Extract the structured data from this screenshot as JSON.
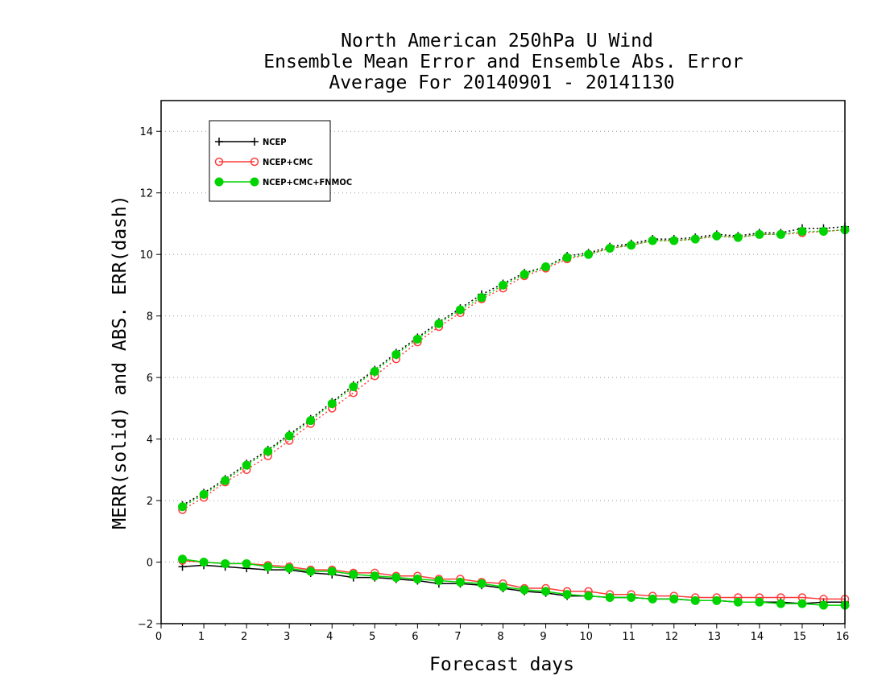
{
  "chart_data": {
    "type": "line",
    "title": [
      "North American 250hPa U Wind",
      "Ensemble Mean Error and Ensemble Abs. Error",
      "Average For 20140901 - 20141130"
    ],
    "xlabel": "Forecast days",
    "ylabel": "MERR(solid) and ABS. ERR(dash)",
    "xlim": [
      0,
      16
    ],
    "ylim": [
      -2,
      15
    ],
    "xticks": [
      0,
      1,
      2,
      3,
      4,
      5,
      6,
      7,
      8,
      9,
      10,
      11,
      12,
      13,
      14,
      15,
      16
    ],
    "yticks": [
      -2,
      0,
      2,
      4,
      6,
      8,
      10,
      12,
      14
    ],
    "grid": "horizontal dotted",
    "legend_position": "top-left",
    "x": [
      0.5,
      1,
      1.5,
      2,
      2.5,
      3,
      3.5,
      4,
      4.5,
      5,
      5.5,
      6,
      6.5,
      7,
      7.5,
      8,
      8.5,
      9,
      9.5,
      10,
      10.5,
      11,
      11.5,
      12,
      12.5,
      13,
      13.5,
      14,
      14.5,
      15,
      15.5,
      16
    ],
    "series": [
      {
        "name": "NCEP",
        "color": "#000000",
        "marker": "plus",
        "abs_error": [
          1.85,
          2.25,
          2.7,
          3.2,
          3.65,
          4.15,
          4.65,
          5.2,
          5.75,
          6.25,
          6.8,
          7.3,
          7.8,
          8.25,
          8.7,
          9.05,
          9.4,
          9.6,
          9.95,
          10.05,
          10.25,
          10.35,
          10.5,
          10.5,
          10.55,
          10.65,
          10.6,
          10.7,
          10.7,
          10.85,
          10.85,
          10.9
        ],
        "mean_error": [
          -0.15,
          -0.1,
          -0.15,
          -0.2,
          -0.25,
          -0.25,
          -0.35,
          -0.4,
          -0.5,
          -0.5,
          -0.55,
          -0.6,
          -0.7,
          -0.7,
          -0.75,
          -0.85,
          -0.95,
          -1.0,
          -1.1,
          -1.1,
          -1.15,
          -1.15,
          -1.2,
          -1.2,
          -1.25,
          -1.25,
          -1.3,
          -1.3,
          -1.3,
          -1.35,
          -1.3,
          -1.3
        ]
      },
      {
        "name": "NCEP+CMC",
        "color": "#ff3b3b",
        "marker": "open-circle",
        "abs_error": [
          1.7,
          2.1,
          2.6,
          3.0,
          3.45,
          3.95,
          4.5,
          5.0,
          5.5,
          6.05,
          6.6,
          7.15,
          7.65,
          8.1,
          8.55,
          8.9,
          9.3,
          9.55,
          9.85,
          10.0,
          10.2,
          10.3,
          10.45,
          10.45,
          10.5,
          10.6,
          10.55,
          10.65,
          10.65,
          10.7,
          10.75,
          10.8
        ],
        "mean_error": [
          0.05,
          0.0,
          -0.05,
          -0.05,
          -0.1,
          -0.15,
          -0.25,
          -0.25,
          -0.35,
          -0.35,
          -0.45,
          -0.45,
          -0.55,
          -0.55,
          -0.65,
          -0.7,
          -0.85,
          -0.85,
          -0.95,
          -0.95,
          -1.05,
          -1.05,
          -1.1,
          -1.1,
          -1.15,
          -1.15,
          -1.15,
          -1.15,
          -1.15,
          -1.15,
          -1.2,
          -1.2
        ]
      },
      {
        "name": "NCEP+CMC+FNMOC",
        "color": "#00d400",
        "marker": "filled-circle",
        "abs_error": [
          1.8,
          2.2,
          2.65,
          3.15,
          3.6,
          4.1,
          4.6,
          5.15,
          5.7,
          6.2,
          6.75,
          7.25,
          7.75,
          8.2,
          8.6,
          9.0,
          9.35,
          9.6,
          9.9,
          10.0,
          10.2,
          10.3,
          10.45,
          10.45,
          10.5,
          10.6,
          10.55,
          10.65,
          10.65,
          10.75,
          10.75,
          10.8
        ],
        "mean_error": [
          0.1,
          0.0,
          -0.05,
          -0.05,
          -0.15,
          -0.2,
          -0.3,
          -0.3,
          -0.4,
          -0.45,
          -0.5,
          -0.55,
          -0.6,
          -0.65,
          -0.7,
          -0.8,
          -0.9,
          -0.95,
          -1.05,
          -1.1,
          -1.15,
          -1.15,
          -1.2,
          -1.2,
          -1.25,
          -1.25,
          -1.3,
          -1.3,
          -1.35,
          -1.35,
          -1.4,
          -1.4
        ]
      }
    ]
  }
}
